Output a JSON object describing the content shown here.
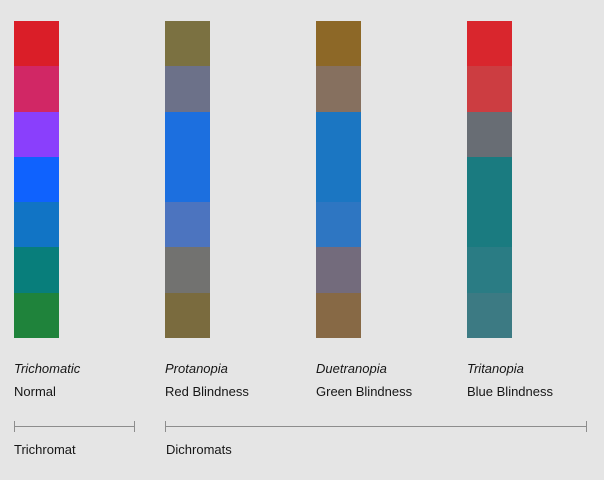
{
  "columns": [
    {
      "name": "Trichomatic",
      "description": "Normal",
      "swatches": [
        "#da1e28",
        "#d12765",
        "#8a3ffc",
        "#0f62fe",
        "#1174c5",
        "#087e7b",
        "#1f833b"
      ]
    },
    {
      "name": "Protanopia",
      "description": "Red Blindness",
      "swatches": [
        "#7b7141",
        "#6c7189",
        "#1c6fdf",
        "#1c6fdf",
        "#4c74bf",
        "#727270",
        "#7a6b3e"
      ]
    },
    {
      "name": "Duetranopia",
      "description": "Green Blindness",
      "swatches": [
        "#8d6827",
        "#86705f",
        "#1b76c2",
        "#1b76c2",
        "#2e76c2",
        "#736b7c",
        "#876945"
      ]
    },
    {
      "name": "Tritanopia",
      "description": "Blue Blindness",
      "swatches": [
        "#d9262d",
        "#cc3d41",
        "#686d74",
        "#1a7b80",
        "#1a7b80",
        "#2a7c84",
        "#3c7a83"
      ]
    }
  ],
  "groups": {
    "trichromat": "Trichromat",
    "dichromats": "Dichromats"
  }
}
